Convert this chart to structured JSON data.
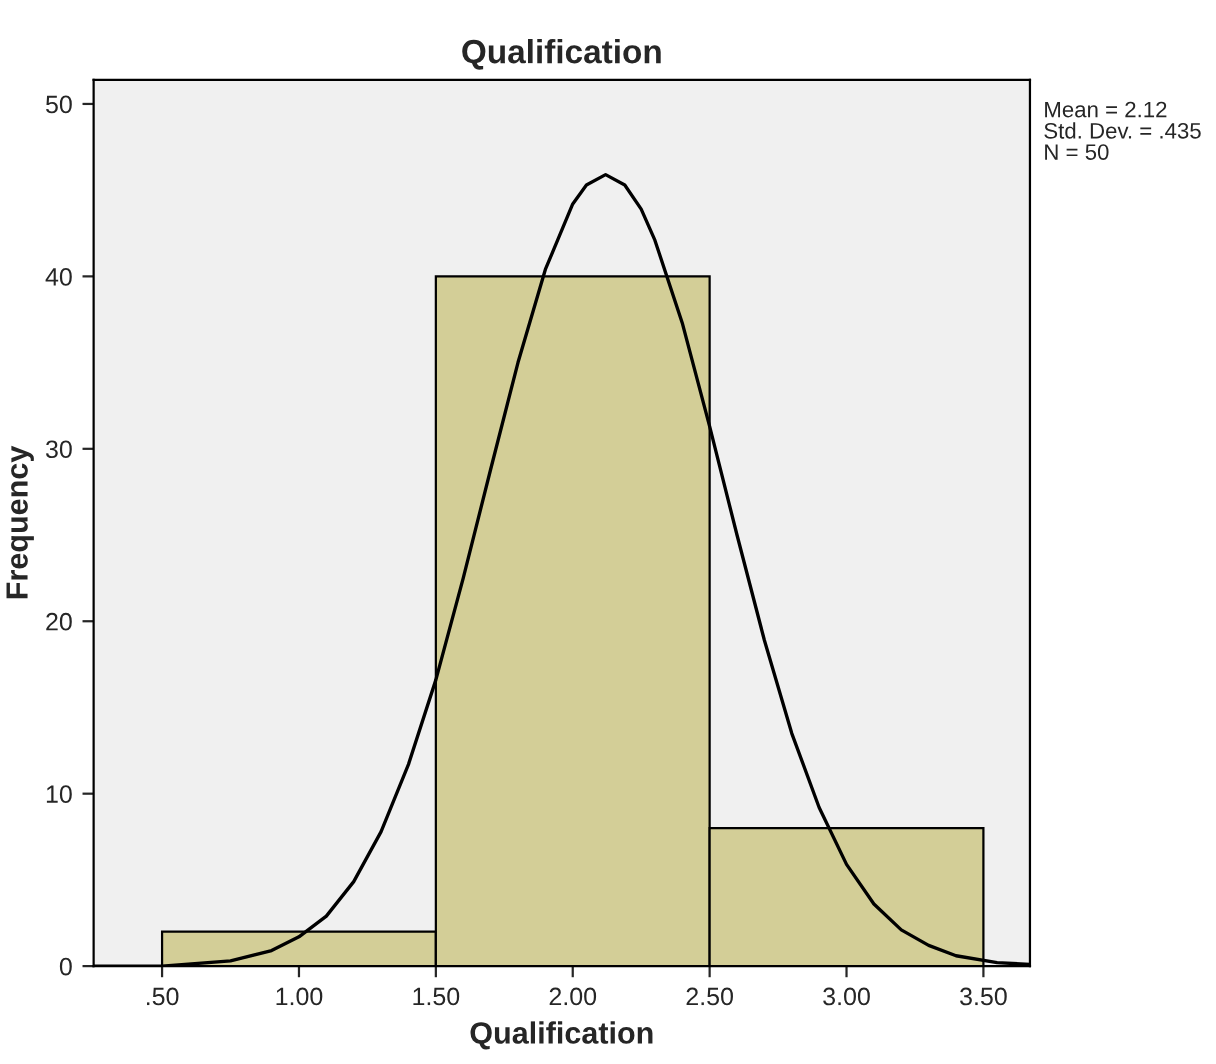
{
  "chart_data": {
    "type": "histogram",
    "title": "Qualification",
    "xlabel": "Qualification",
    "ylabel": "Frequency",
    "bins": [
      0.5,
      1.5,
      2.5,
      3.5
    ],
    "values": [
      2,
      40,
      8
    ],
    "color": "#d3ce97",
    "series": [
      {
        "type": "line",
        "color": "#000000",
        "x": [
          0.25,
          0.5,
          0.75,
          0.9,
          1.0,
          1.1,
          1.2,
          1.3,
          1.4,
          1.5,
          1.6,
          1.7,
          1.8,
          1.9,
          2.0,
          2.05,
          2.12,
          2.19,
          2.25,
          2.3,
          2.4,
          2.5,
          2.6,
          2.7,
          2.8,
          2.9,
          3.0,
          3.1,
          3.2,
          3.3,
          3.4,
          3.55,
          3.67
        ],
        "values": [
          0.0,
          0.0,
          0.3,
          0.9,
          1.7,
          2.9,
          4.9,
          7.8,
          11.7,
          16.6,
          22.5,
          28.8,
          35.0,
          40.4,
          44.2,
          45.3,
          45.9,
          45.3,
          43.9,
          42.1,
          37.3,
          31.3,
          25.0,
          18.9,
          13.5,
          9.2,
          5.9,
          3.6,
          2.1,
          1.2,
          0.6,
          0.2,
          0.1
        ]
      }
    ],
    "xlim": [
      0.25,
      3.67
    ],
    "ylim": [
      0,
      51.4
    ],
    "xticks": [
      {
        "value": 0.5,
        "label": ".50"
      },
      {
        "value": 1.0,
        "label": "1.00"
      },
      {
        "value": 1.5,
        "label": "1.50"
      },
      {
        "value": 2.0,
        "label": "2.00"
      },
      {
        "value": 2.5,
        "label": "2.50"
      },
      {
        "value": 3.0,
        "label": "3.00"
      },
      {
        "value": 3.5,
        "label": "3.50"
      }
    ],
    "yticks": [
      0,
      10,
      20,
      30,
      40,
      50
    ],
    "grid": false,
    "annotations": [
      "Mean = 2.12",
      "Std. Dev. = .435",
      "N = 50"
    ]
  }
}
